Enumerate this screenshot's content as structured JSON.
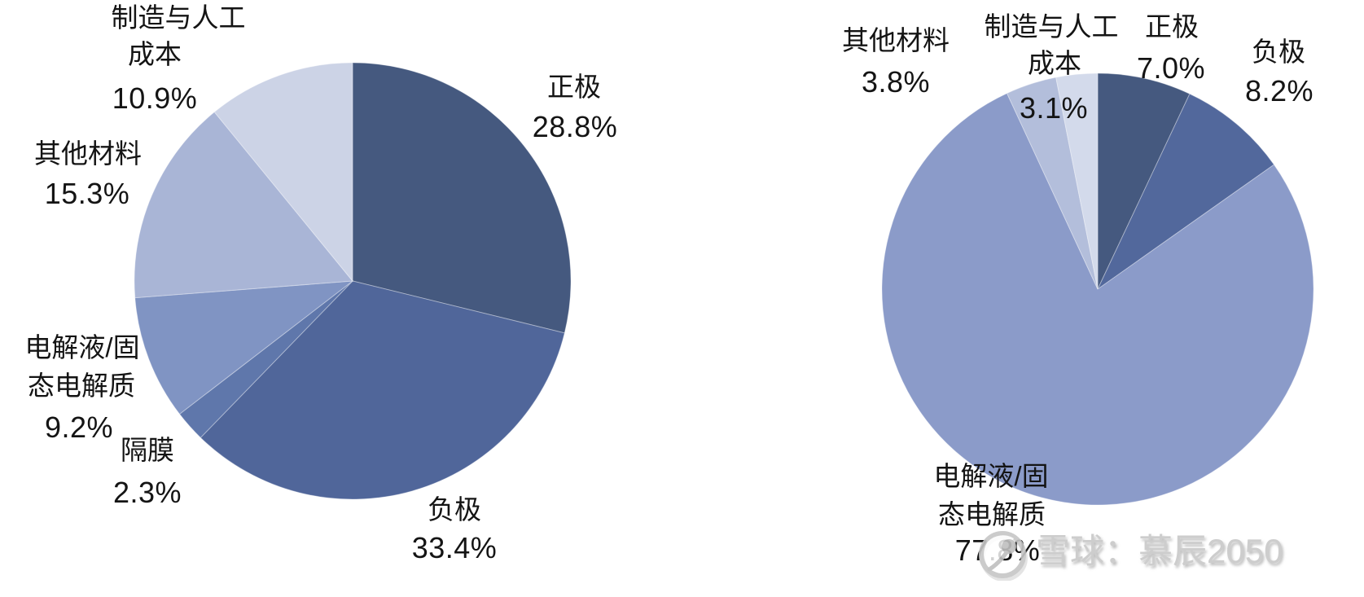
{
  "watermark": {
    "logo_icon": "xueqiu-snowball-logo",
    "text": "雪球：慕辰2050"
  },
  "chart_data": [
    {
      "type": "pie",
      "title": "",
      "position": "left",
      "start_angle_deg": 0,
      "direction": "clockwise",
      "legend": "none",
      "unit": "%",
      "slices": [
        {
          "label": "正极",
          "value": 28.8,
          "color": "#45597f"
        },
        {
          "label": "负极",
          "value": 33.4,
          "color": "#50669a"
        },
        {
          "label": "隔膜",
          "value": 2.3,
          "color": "#5f77ab"
        },
        {
          "label": "电解液/固态电解质",
          "value": 9.2,
          "color": "#8094c3"
        },
        {
          "label": "其他材料",
          "value": 15.3,
          "color": "#a9b5d6"
        },
        {
          "label": "制造与人工成本",
          "value": 10.9,
          "color": "#ccd3e6"
        }
      ]
    },
    {
      "type": "pie",
      "title": "",
      "position": "right",
      "start_angle_deg": 0,
      "direction": "clockwise",
      "legend": "none",
      "unit": "%",
      "slices": [
        {
          "label": "正极",
          "value": 7.0,
          "color": "#45597f"
        },
        {
          "label": "负极",
          "value": 8.2,
          "color": "#52689c"
        },
        {
          "label": "电解液/固态电解质",
          "value": 77.8,
          "color": "#8b9bc9"
        },
        {
          "label": "其他材料",
          "value": 3.8,
          "color": "#b3bedb"
        },
        {
          "label": "制造与人工成本",
          "value": 3.1,
          "color": "#d3daeb"
        }
      ]
    }
  ],
  "left_labels": {
    "mfg_line1": "制造与人工",
    "mfg_line2": "成本",
    "mfg_value": "10.9%",
    "cathode_name": "正极",
    "cathode_value": "28.8%",
    "other_name": "其他材料",
    "other_value": "15.3%",
    "elec_line1": "电解液/固",
    "elec_line2": "态电解质",
    "elec_value": "9.2%",
    "sep_name": "隔膜",
    "sep_value": "2.3%",
    "anode_name": "负极",
    "anode_value": "33.4%"
  },
  "right_labels": {
    "other_name": "其他材料",
    "other_value": "3.8%",
    "mfg_line1": "制造与人工",
    "mfg_line2": "成本",
    "mfg_value": "3.1%",
    "cathode_name": "正极",
    "cathode_value": "7.0%",
    "anode_name": "负极",
    "anode_value": "8.2%",
    "elec_line1": "电解液/固",
    "elec_line2": "态电解质",
    "elec_value": "77.8%"
  }
}
